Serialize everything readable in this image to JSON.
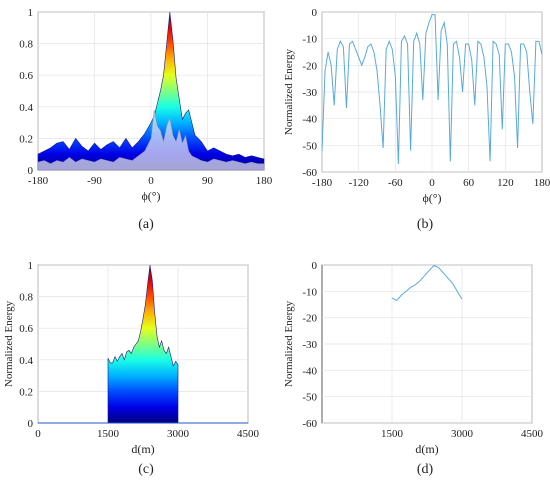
{
  "panels": [
    {
      "id": "a",
      "caption": "(a)",
      "chart_data": {
        "type": "area",
        "title": "",
        "xlabel": "ϕ(°)",
        "ylabel": "",
        "xlim": [
          -180,
          180
        ],
        "ylim": [
          0,
          1
        ],
        "xticks": [
          -180,
          -90,
          0,
          90,
          180
        ],
        "yticks": [
          0,
          0.2,
          0.4,
          0.6,
          0.8,
          1
        ],
        "grid": true,
        "colormap": "jet",
        "x": [
          -180,
          -170,
          -160,
          -150,
          -140,
          -130,
          -120,
          -110,
          -100,
          -90,
          -80,
          -70,
          -60,
          -50,
          -40,
          -30,
          -20,
          -10,
          0,
          5,
          10,
          15,
          20,
          25,
          30,
          35,
          40,
          45,
          50,
          55,
          60,
          65,
          70,
          80,
          90,
          100,
          110,
          120,
          130,
          140,
          150,
          160,
          170,
          180
        ],
        "envelope": [
          0.1,
          0.12,
          0.14,
          0.17,
          0.18,
          0.13,
          0.2,
          0.15,
          0.12,
          0.17,
          0.13,
          0.16,
          0.18,
          0.14,
          0.2,
          0.14,
          0.18,
          0.23,
          0.3,
          0.34,
          0.42,
          0.5,
          0.6,
          0.8,
          1.0,
          0.82,
          0.58,
          0.45,
          0.32,
          0.36,
          0.38,
          0.3,
          0.22,
          0.18,
          0.12,
          0.14,
          0.12,
          0.1,
          0.09,
          0.1,
          0.08,
          0.09,
          0.08,
          0.07
        ],
        "lower_trace": [
          0.05,
          0.06,
          0.04,
          0.06,
          0.05,
          0.08,
          0.05,
          0.07,
          0.06,
          0.05,
          0.07,
          0.06,
          0.05,
          0.08,
          0.07,
          0.06,
          0.09,
          0.12,
          0.2,
          0.38,
          0.28,
          0.25,
          0.18,
          0.28,
          0.33,
          0.22,
          0.18,
          0.26,
          0.17,
          0.22,
          0.12,
          0.09,
          0.08,
          0.06,
          0.05,
          0.07,
          0.06,
          0.05,
          0.06,
          0.05,
          0.04,
          0.05,
          0.04,
          0.04
        ]
      }
    },
    {
      "id": "b",
      "caption": "(b)",
      "chart_data": {
        "type": "line",
        "title": "",
        "xlabel": "ϕ(°)",
        "ylabel": "Normalized Energy",
        "xlim": [
          -180,
          180
        ],
        "ylim": [
          -60,
          0
        ],
        "xticks": [
          -180,
          -120,
          -60,
          0,
          60,
          120,
          180
        ],
        "yticks": [
          0,
          -10,
          -20,
          -30,
          -40,
          -50,
          -60
        ],
        "grid": true,
        "color": "#5aa9dd",
        "series": [
          {
            "x": [
              -180,
              -175,
              -170,
              -165,
              -160,
              -155,
              -150,
              -145,
              -140,
              -135,
              -130,
              -125,
              -120,
              -115,
              -110,
              -105,
              -100,
              -95,
              -90,
              -85,
              -80,
              -75,
              -70,
              -65,
              -60,
              -55,
              -50,
              -45,
              -40,
              -35,
              -30,
              -25,
              -20,
              -15,
              -10,
              -5,
              0,
              5,
              10,
              15,
              20,
              25,
              30,
              35,
              40,
              45,
              50,
              55,
              60,
              65,
              70,
              75,
              80,
              85,
              90,
              95,
              100,
              105,
              110,
              115,
              120,
              125,
              130,
              135,
              140,
              145,
              150,
              155,
              160,
              165,
              170,
              175,
              180
            ],
            "values": [
              -52,
              -22,
              -15,
              -20,
              -35,
              -14,
              -11,
              -13,
              -36,
              -12,
              -11,
              -14,
              -17,
              -20,
              -17,
              -13,
              -12,
              -15,
              -22,
              -35,
              -51,
              -14,
              -11,
              -14,
              -24,
              -57,
              -11,
              -9,
              -12,
              -52,
              -11,
              -8,
              -12,
              -33,
              -8,
              -4,
              -1,
              -1,
              -33,
              -7,
              -4,
              -12,
              -56,
              -12,
              -11,
              -17,
              -30,
              -12,
              -12,
              -18,
              -35,
              -11,
              -12,
              -17,
              -28,
              -56,
              -11,
              -12,
              -16,
              -44,
              -12,
              -12,
              -15,
              -24,
              -51,
              -12,
              -12,
              -15,
              -30,
              -42,
              -11,
              -11,
              -16
            ]
          }
        ]
      }
    },
    {
      "id": "c",
      "caption": "(c)",
      "chart_data": {
        "type": "area",
        "title": "",
        "xlabel": "d(m)",
        "ylabel": "Normalized Energy",
        "xlim": [
          0,
          4500
        ],
        "ylim": [
          0,
          1
        ],
        "xticks": [
          0,
          1500,
          3000,
          4500
        ],
        "yticks": [
          0,
          0.2,
          0.4,
          0.6,
          0.8,
          1
        ],
        "grid": true,
        "colormap": "jet",
        "x": [
          1500,
          1550,
          1600,
          1650,
          1700,
          1750,
          1800,
          1850,
          1900,
          1950,
          2000,
          2050,
          2100,
          2150,
          2200,
          2250,
          2300,
          2350,
          2400,
          2450,
          2500,
          2550,
          2600,
          2650,
          2700,
          2750,
          2800,
          2850,
          2900,
          2950,
          3000
        ],
        "envelope": [
          0.41,
          0.38,
          0.38,
          0.42,
          0.39,
          0.42,
          0.44,
          0.4,
          0.45,
          0.46,
          0.44,
          0.48,
          0.5,
          0.52,
          0.58,
          0.66,
          0.75,
          0.88,
          1.0,
          0.9,
          0.7,
          0.55,
          0.48,
          0.52,
          0.46,
          0.44,
          0.48,
          0.42,
          0.36,
          0.39,
          0.37
        ]
      }
    },
    {
      "id": "d",
      "caption": "(d)",
      "chart_data": {
        "type": "line",
        "title": "",
        "xlabel": "d(m)",
        "ylabel": "Normalized Energy",
        "xlim": [
          0,
          4500
        ],
        "ylim": [
          -60,
          0
        ],
        "xticks": [
          1500,
          3000,
          4500
        ],
        "yticks": [
          0,
          -10,
          -20,
          -30,
          -40,
          -50,
          -60
        ],
        "grid": true,
        "color": "#5aa9dd",
        "series": [
          {
            "x": [
              1500,
              1600,
              1700,
              1800,
              1900,
              2000,
              2100,
              2200,
              2300,
              2400,
              2500,
              2600,
              2700,
              2800,
              2900,
              3000
            ],
            "values": [
              -12.5,
              -13.5,
              -11.5,
              -10,
              -8.5,
              -7.5,
              -6,
              -4,
              -2,
              -0.2,
              -1,
              -3,
              -5,
              -7,
              -10,
              -13
            ]
          }
        ]
      }
    }
  ]
}
